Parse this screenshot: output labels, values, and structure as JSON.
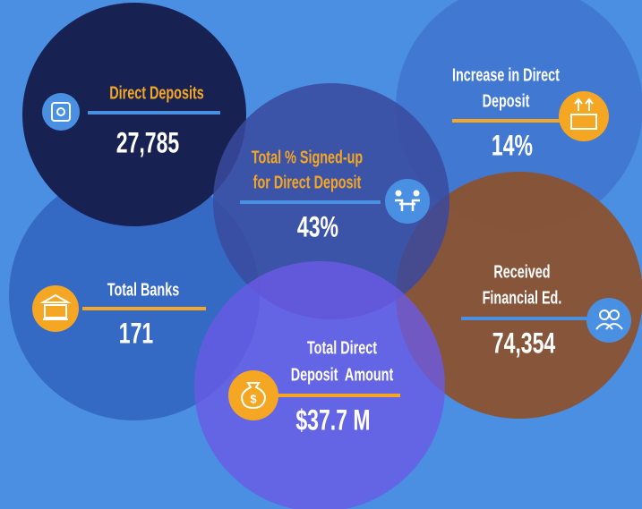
{
  "items": [
    {
      "label": [
        "Direct Deposits"
      ],
      "value": "27,785"
    },
    {
      "label": [
        "Increase in Direct",
        "Deposit"
      ],
      "value": "14%"
    },
    {
      "label": [
        "Total % Signed-up",
        "for Direct Deposit"
      ],
      "value": "43%"
    },
    {
      "label": [
        "Total Banks"
      ],
      "value": "171"
    },
    {
      "label": [
        "Received",
        "Financial Ed."
      ],
      "value": "74,354"
    },
    {
      "label": [
        "Total Direct",
        "Deposit  Amount"
      ],
      "value": "$37.7 M"
    }
  ]
}
